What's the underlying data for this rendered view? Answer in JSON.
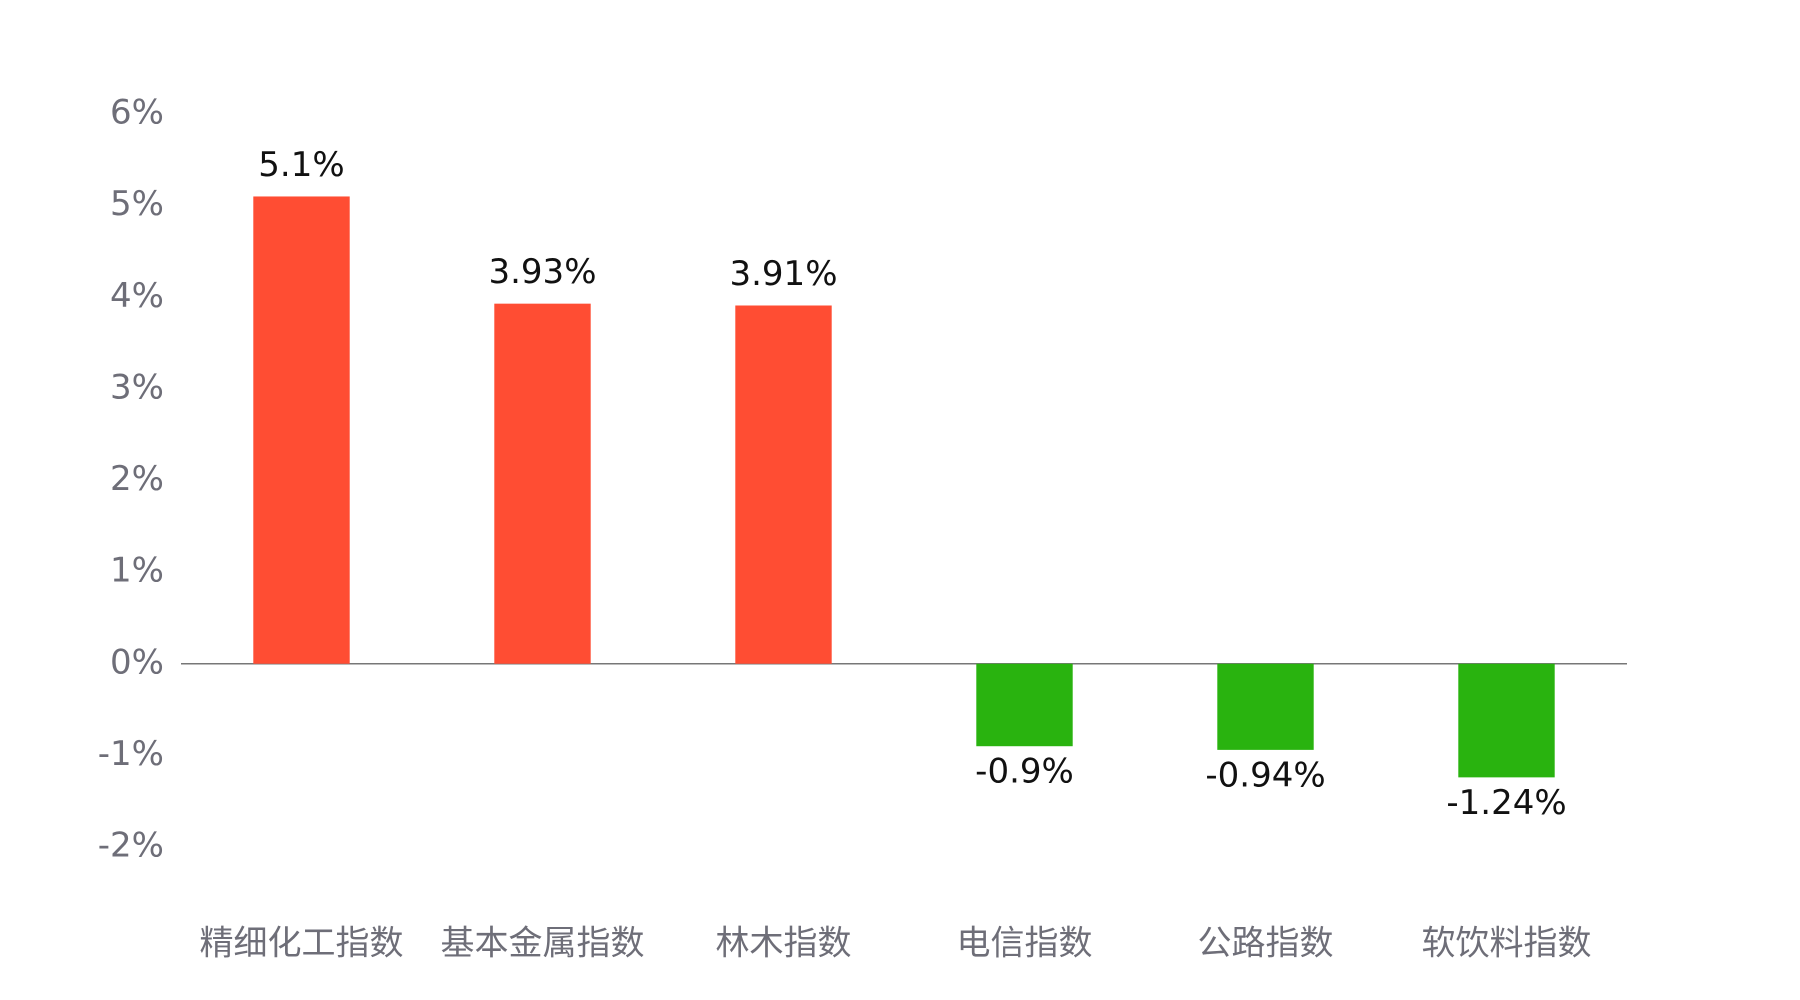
{
  "chart_data": {
    "type": "bar",
    "categories": [
      "精细化工指数",
      "基本金属指数",
      "林木指数",
      "电信指数",
      "公路指数",
      "软饮料指数"
    ],
    "values": [
      5.1,
      3.93,
      3.91,
      -0.9,
      -0.94,
      -1.24
    ],
    "value_labels": [
      "5.1%",
      "3.93%",
      "3.91%",
      "-0.9%",
      "-0.94%",
      "-1.24%"
    ],
    "colors": [
      "#ff4d33",
      "#ff4d33",
      "#ff4d33",
      "#29b30f",
      "#29b30f",
      "#29b30f"
    ],
    "ylim": [
      -2,
      6
    ],
    "yticks": [
      {
        "value": 6,
        "label": "6%"
      },
      {
        "value": 5,
        "label": "5%"
      },
      {
        "value": 4,
        "label": "4%"
      },
      {
        "value": 3,
        "label": "3%"
      },
      {
        "value": 2,
        "label": "2%"
      },
      {
        "value": 1,
        "label": "1%"
      },
      {
        "value": 0,
        "label": "0%"
      },
      {
        "value": -1,
        "label": "-1%"
      },
      {
        "value": -2,
        "label": "-2%"
      }
    ],
    "grid": false
  }
}
